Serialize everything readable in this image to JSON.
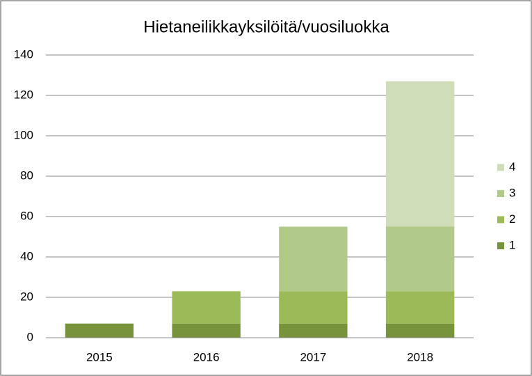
{
  "chart_data": {
    "type": "stacked-bar",
    "title": "Hietaneilikkayksilöitä/vuosiluokka",
    "categories": [
      "2015",
      "2016",
      "2017",
      "2018"
    ],
    "series": [
      {
        "name": "1",
        "color": "#77933c",
        "values": [
          7,
          7,
          7,
          7
        ]
      },
      {
        "name": "2",
        "color": "#9bbb59",
        "values": [
          null,
          16,
          16,
          16
        ]
      },
      {
        "name": "3",
        "color": "#b1ca8a",
        "values": [
          null,
          null,
          32,
          32
        ]
      },
      {
        "name": "4",
        "color": "#d0ddb9",
        "values": [
          null,
          null,
          null,
          72
        ]
      }
    ],
    "ylim": [
      0,
      140
    ],
    "yticks": [
      0,
      20,
      40,
      60,
      80,
      100,
      120,
      140
    ],
    "grid": true,
    "legend": "right"
  }
}
